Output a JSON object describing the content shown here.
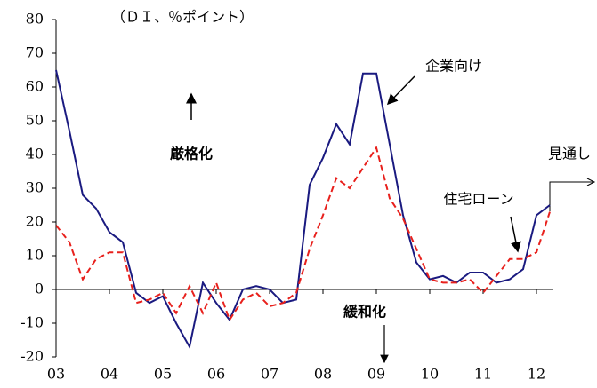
{
  "chart_data": {
    "type": "line",
    "unit_label": "（ＤＩ、％ポイント）",
    "annotations": [
      "厳格化",
      "緩和化",
      "見通し"
    ],
    "x": [
      3,
      3.25,
      3.5,
      3.75,
      4,
      4.25,
      4.5,
      4.75,
      5,
      5.25,
      5.5,
      5.75,
      6,
      6.25,
      6.5,
      6.75,
      7,
      7.25,
      7.5,
      7.75,
      8,
      8.25,
      8.5,
      8.75,
      9,
      9.25,
      9.5,
      9.75,
      10,
      10.25,
      10.5,
      10.75,
      11,
      11.25,
      11.5,
      11.75,
      12,
      12.25
    ],
    "series": [
      {
        "name": "企業向け",
        "color": "#1a1a80",
        "dash": false,
        "values": [
          65,
          47,
          28,
          24,
          17,
          14,
          -1,
          -4,
          -2,
          -10,
          -17,
          2,
          -4,
          -9,
          0,
          1,
          0,
          -4,
          -3,
          31,
          39,
          49,
          43,
          64,
          64,
          43,
          22,
          8,
          3,
          4,
          2,
          5,
          5,
          2,
          3,
          6,
          22,
          25
        ]
      },
      {
        "name": "住宅ローン",
        "color": "#e8201c",
        "dash": true,
        "values": [
          19,
          14,
          3,
          9,
          11,
          11,
          -4,
          -3,
          -1,
          -7,
          1,
          -7,
          2,
          -9,
          -3,
          -1,
          -5,
          -4,
          -1,
          12,
          22,
          33,
          30,
          36,
          42,
          27,
          21,
          12,
          3,
          2,
          2,
          3,
          -1,
          4,
          9,
          9,
          11,
          23
        ]
      }
    ],
    "xlim": [
      3,
      12.25
    ],
    "xticks": [
      {
        "value": 3,
        "label": "03"
      },
      {
        "value": 4,
        "label": "04"
      },
      {
        "value": 5,
        "label": "05"
      },
      {
        "value": 6,
        "label": "06"
      },
      {
        "value": 7,
        "label": "07"
      },
      {
        "value": 8,
        "label": "08"
      },
      {
        "value": 9,
        "label": "09"
      },
      {
        "value": 10,
        "label": "10"
      },
      {
        "value": 11,
        "label": "11"
      },
      {
        "value": 12,
        "label": "12"
      }
    ],
    "ylim": [
      -20,
      80
    ],
    "yticks": [
      -20,
      -10,
      0,
      10,
      20,
      30,
      40,
      50,
      60,
      70,
      80
    ]
  }
}
